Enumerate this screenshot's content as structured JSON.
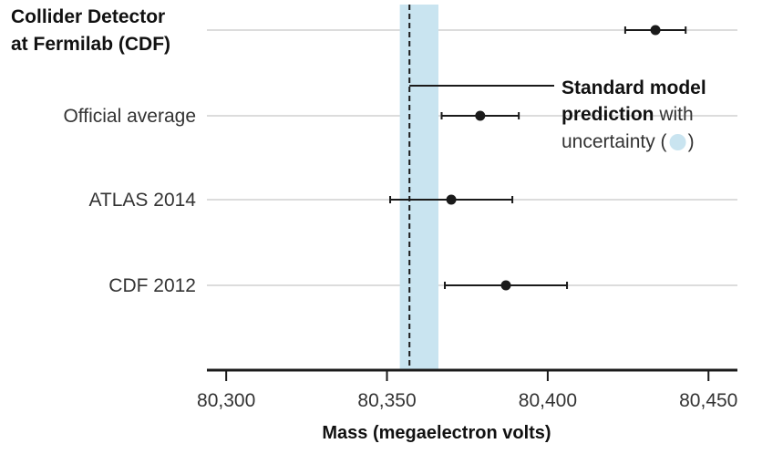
{
  "chart_data": {
    "type": "scatter",
    "subtype": "dot-with-error-bars",
    "title": "",
    "xlabel": "Mass (megaelectron volts)",
    "ylabel": "",
    "xlim": [
      80294,
      80459
    ],
    "x_ticks": [
      80300,
      80350,
      80400,
      80450
    ],
    "x_tick_labels": [
      "80,300",
      "80,350",
      "80,400",
      "80,450"
    ],
    "grid": "horizontal guide lines per row",
    "rows": [
      {
        "label_lines": [
          "Collider Detector",
          "at Fermilab (CDF)"
        ],
        "bold": true,
        "value": 80433.5,
        "low": 80424.1,
        "high": 80442.9
      },
      {
        "label_lines": [
          "Official average"
        ],
        "bold": false,
        "value": 80379,
        "low": 80367,
        "high": 80391
      },
      {
        "label_lines": [
          "ATLAS 2014"
        ],
        "bold": false,
        "value": 80370,
        "low": 80351,
        "high": 80389
      },
      {
        "label_lines": [
          "CDF 2012"
        ],
        "bold": false,
        "value": 80387,
        "low": 80368,
        "high": 80406
      }
    ],
    "prediction": {
      "value": 80357,
      "low": 80354,
      "high": 80366
    },
    "annotation": {
      "bold1": "Standard model",
      "bold2": "prediction",
      "text1": " with",
      "text2": "uncertainty (",
      "text3": ")"
    },
    "colors": {
      "band": "#c9e4f0",
      "point": "#1a1a1a",
      "guide": "#d0d0d0",
      "axis": "#1a1a1a"
    }
  }
}
